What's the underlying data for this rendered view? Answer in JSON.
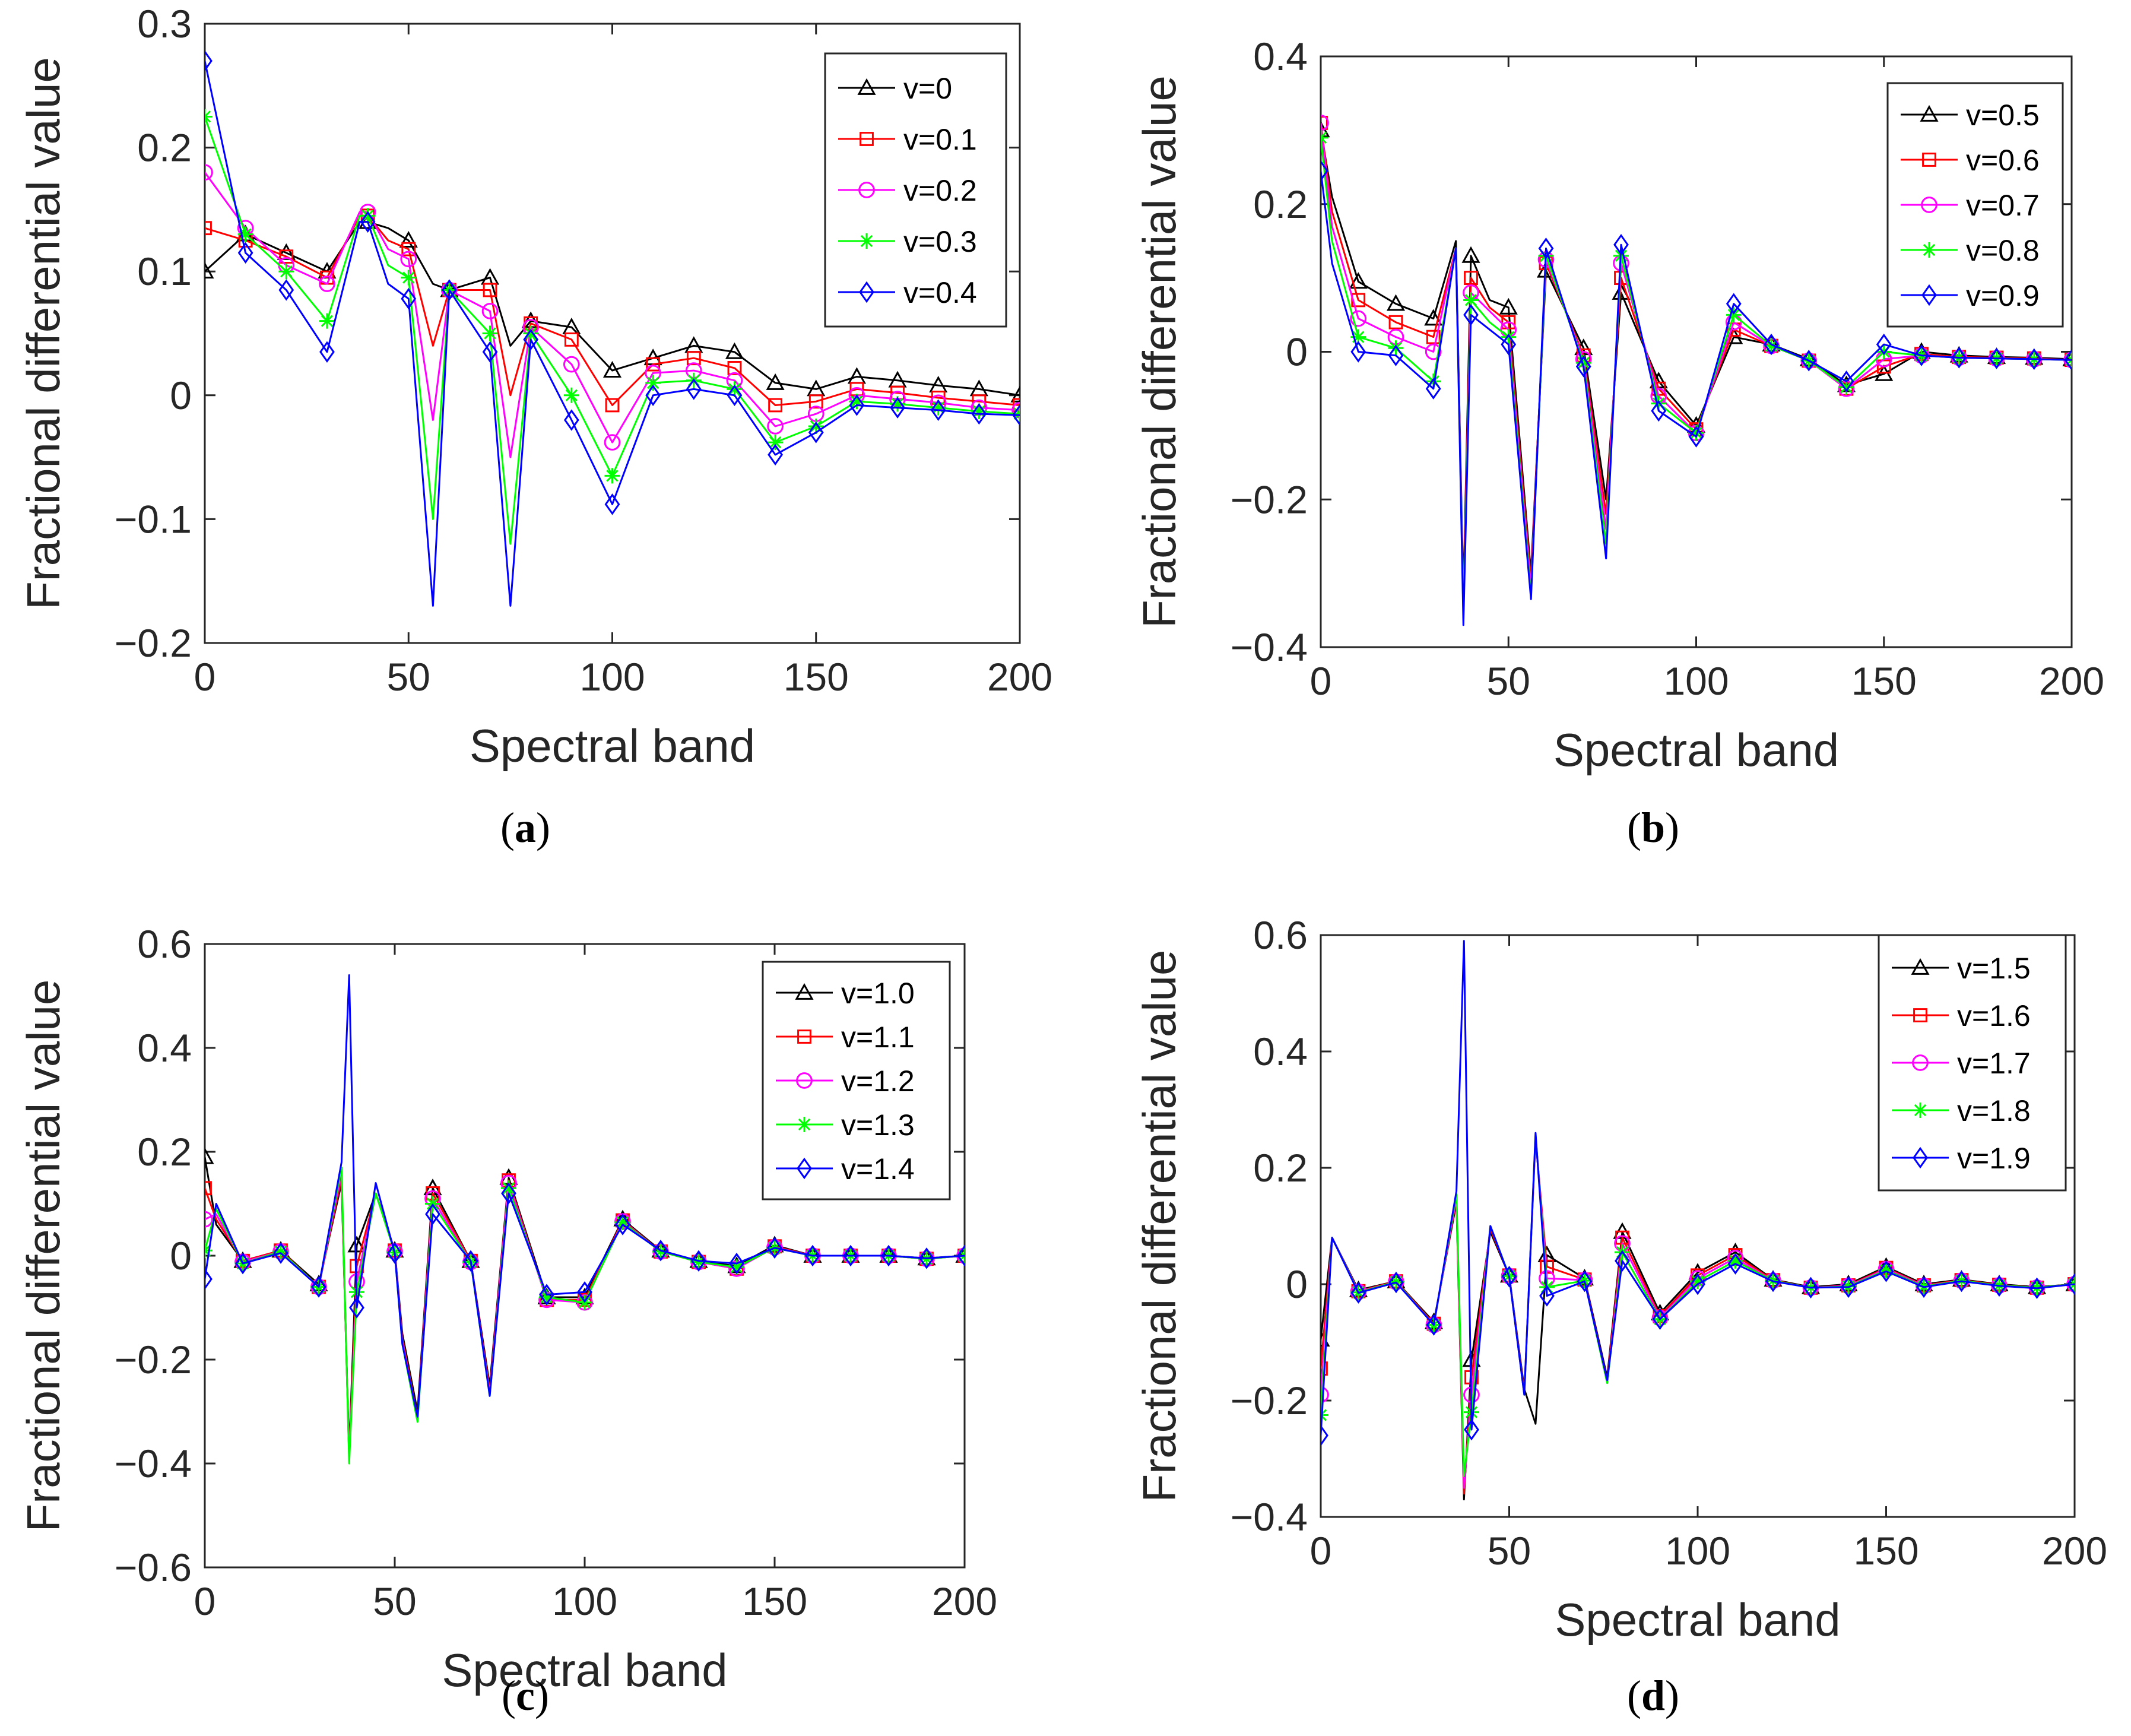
{
  "chart_data": [
    {
      "type": "line",
      "panel_label": "(a)",
      "xlabel": "Spectral band",
      "ylabel": "Fractional differential value",
      "xlim": [
        0,
        200
      ],
      "ylim": [
        -0.2,
        0.3
      ],
      "xticks": [
        0,
        50,
        100,
        150,
        200
      ],
      "yticks": [
        -0.2,
        -0.1,
        0,
        0.1,
        0.2,
        0.3
      ],
      "ytick_labels": [
        "−0.2",
        "−0.1",
        "0",
        "0.1",
        "0.2",
        "0.3"
      ],
      "legend_position": "top-right",
      "x": [
        0,
        10,
        20,
        30,
        38,
        40,
        45,
        50,
        56,
        60,
        70,
        75,
        80,
        90,
        100,
        110,
        120,
        130,
        140,
        150,
        160,
        170,
        180,
        190,
        200
      ],
      "series": [
        {
          "name": "v=0",
          "color": "#000000",
          "marker": "triangle",
          "values": [
            0.1,
            0.13,
            0.115,
            0.1,
            0.14,
            0.14,
            0.135,
            0.125,
            0.09,
            0.085,
            0.095,
            0.04,
            0.06,
            0.055,
            0.02,
            0.03,
            0.04,
            0.035,
            0.01,
            0.005,
            0.015,
            0.012,
            0.008,
            0.005,
            0.0
          ]
        },
        {
          "name": "v=0.1",
          "color": "#ff0000",
          "marker": "square",
          "values": [
            0.135,
            0.125,
            0.112,
            0.095,
            0.145,
            0.145,
            0.125,
            0.118,
            0.04,
            0.085,
            0.085,
            0.0,
            0.058,
            0.045,
            -0.008,
            0.025,
            0.03,
            0.022,
            -0.008,
            -0.005,
            0.005,
            0.002,
            -0.002,
            -0.005,
            -0.008
          ]
        },
        {
          "name": "v=0.2",
          "color": "#ff00ff",
          "marker": "circle",
          "values": [
            0.18,
            0.135,
            0.105,
            0.09,
            0.148,
            0.148,
            0.118,
            0.11,
            -0.02,
            0.085,
            0.068,
            -0.05,
            0.055,
            0.025,
            -0.038,
            0.018,
            0.02,
            0.012,
            -0.025,
            -0.015,
            0.0,
            -0.003,
            -0.006,
            -0.01,
            -0.012
          ]
        },
        {
          "name": "v=0.3",
          "color": "#00ff00",
          "marker": "star",
          "values": [
            0.225,
            0.13,
            0.1,
            0.06,
            0.145,
            0.145,
            0.105,
            0.095,
            -0.1,
            0.085,
            0.05,
            -0.12,
            0.05,
            0.0,
            -0.065,
            0.01,
            0.012,
            0.005,
            -0.038,
            -0.025,
            -0.005,
            -0.007,
            -0.01,
            -0.013,
            -0.015
          ]
        },
        {
          "name": "v=0.4",
          "color": "#0000ff",
          "marker": "diamond",
          "values": [
            0.27,
            0.115,
            0.085,
            0.035,
            0.14,
            0.14,
            0.09,
            0.078,
            -0.17,
            0.085,
            0.035,
            -0.17,
            0.045,
            -0.02,
            -0.088,
            0.0,
            0.005,
            0.0,
            -0.048,
            -0.03,
            -0.008,
            -0.01,
            -0.012,
            -0.015,
            -0.016
          ]
        }
      ]
    },
    {
      "type": "line",
      "panel_label": "(b)",
      "xlabel": "Spectral band",
      "ylabel": "Fractional differential value",
      "xlim": [
        0,
        200
      ],
      "ylim": [
        -0.4,
        0.4
      ],
      "xticks": [
        0,
        50,
        100,
        150,
        200
      ],
      "yticks": [
        -0.4,
        -0.2,
        0,
        0.2,
        0.4
      ],
      "ytick_labels": [
        "−0.4",
        "−0.2",
        "0",
        "0.2",
        "0.4"
      ],
      "legend_position": "top-right",
      "x": [
        0,
        3,
        10,
        20,
        30,
        36,
        38,
        40,
        45,
        50,
        56,
        60,
        70,
        76,
        80,
        90,
        100,
        110,
        120,
        130,
        140,
        150,
        160,
        170,
        180,
        190,
        200
      ],
      "series": [
        {
          "name": "v=0.5",
          "color": "#000000",
          "marker": "triangle",
          "values": [
            0.3,
            0.21,
            0.095,
            0.065,
            0.045,
            0.15,
            -0.33,
            0.13,
            0.07,
            0.06,
            -0.3,
            0.11,
            0.005,
            -0.2,
            0.08,
            -0.04,
            -0.1,
            0.02,
            0.01,
            -0.01,
            -0.045,
            -0.03,
            0.0,
            -0.005,
            -0.007,
            -0.008,
            -0.01
          ]
        },
        {
          "name": "v=0.6",
          "color": "#ff0000",
          "marker": "square",
          "values": [
            0.31,
            0.19,
            0.07,
            0.04,
            0.02,
            0.14,
            -0.34,
            0.1,
            0.06,
            0.04,
            -0.31,
            0.12,
            -0.005,
            -0.22,
            0.1,
            -0.05,
            -0.105,
            0.03,
            0.008,
            -0.012,
            -0.05,
            -0.02,
            -0.003,
            -0.007,
            -0.008,
            -0.009,
            -0.011
          ]
        },
        {
          "name": "v=0.7",
          "color": "#ff00ff",
          "marker": "circle",
          "values": [
            0.31,
            0.17,
            0.045,
            0.02,
            0.0,
            0.14,
            -0.35,
            0.08,
            0.055,
            0.03,
            -0.32,
            0.125,
            -0.01,
            -0.24,
            0.12,
            -0.06,
            -0.11,
            0.04,
            0.008,
            -0.012,
            -0.05,
            -0.01,
            -0.005,
            -0.008,
            -0.009,
            -0.01,
            -0.011
          ]
        },
        {
          "name": "v=0.8",
          "color": "#00ff00",
          "marker": "star",
          "values": [
            0.29,
            0.15,
            0.02,
            0.005,
            -0.04,
            0.14,
            -0.36,
            0.07,
            0.04,
            0.02,
            -0.33,
            0.13,
            -0.015,
            -0.26,
            0.13,
            -0.07,
            -0.11,
            0.05,
            0.008,
            -0.012,
            -0.048,
            0.0,
            -0.005,
            -0.008,
            -0.009,
            -0.01,
            -0.011
          ]
        },
        {
          "name": "v=0.9",
          "color": "#0000ff",
          "marker": "diamond",
          "values": [
            0.245,
            0.12,
            0.0,
            -0.005,
            -0.05,
            0.14,
            -0.37,
            0.05,
            0.03,
            0.01,
            -0.335,
            0.14,
            -0.02,
            -0.28,
            0.145,
            -0.08,
            -0.115,
            0.065,
            0.01,
            -0.012,
            -0.04,
            0.01,
            -0.005,
            -0.008,
            -0.009,
            -0.01,
            -0.011
          ]
        }
      ]
    },
    {
      "type": "line",
      "panel_label": "(c)",
      "xlabel": "Spectral band",
      "ylabel": "Fractional differential value",
      "xlim": [
        0,
        200
      ],
      "ylim": [
        -0.6,
        0.6
      ],
      "xticks": [
        0,
        50,
        100,
        150,
        200
      ],
      "yticks": [
        -0.6,
        -0.4,
        -0.2,
        0,
        0.2,
        0.4,
        0.6
      ],
      "ytick_labels": [
        "−0.6",
        "−0.4",
        "−0.2",
        "0",
        "0.2",
        "0.4",
        "0.6"
      ],
      "legend_position": "top-right",
      "x": [
        0,
        3,
        10,
        20,
        30,
        36,
        38,
        40,
        45,
        50,
        52,
        56,
        60,
        70,
        75,
        80,
        90,
        100,
        110,
        120,
        130,
        140,
        150,
        160,
        170,
        180,
        190,
        200
      ],
      "series": [
        {
          "name": "v=1.0",
          "color": "#000000",
          "marker": "triangle",
          "values": [
            0.19,
            0.06,
            -0.01,
            0.01,
            -0.055,
            0.14,
            -0.38,
            0.02,
            0.12,
            0.01,
            -0.15,
            -0.3,
            0.13,
            -0.01,
            -0.25,
            0.15,
            -0.08,
            -0.08,
            0.07,
            0.01,
            -0.01,
            -0.02,
            0.02,
            0.0,
            0.0,
            0.0,
            -0.005,
            0.0
          ]
        },
        {
          "name": "v=1.1",
          "color": "#ff0000",
          "marker": "square",
          "values": [
            0.13,
            0.07,
            -0.01,
            0.01,
            -0.06,
            0.15,
            -0.39,
            -0.02,
            0.12,
            0.01,
            -0.16,
            -0.31,
            0.12,
            -0.01,
            -0.26,
            0.145,
            -0.085,
            -0.085,
            0.068,
            0.008,
            -0.012,
            -0.025,
            0.018,
            0.0,
            0.0,
            0.0,
            -0.006,
            0.0
          ]
        },
        {
          "name": "v=1.2",
          "color": "#ff00ff",
          "marker": "circle",
          "values": [
            0.07,
            0.08,
            -0.012,
            0.008,
            -0.06,
            0.16,
            -0.395,
            -0.05,
            0.12,
            0.008,
            -0.165,
            -0.315,
            0.11,
            -0.012,
            -0.265,
            0.14,
            -0.085,
            -0.09,
            0.066,
            0.008,
            -0.012,
            -0.025,
            0.016,
            0.0,
            0.0,
            0.0,
            -0.006,
            0.0
          ]
        },
        {
          "name": "v=1.3",
          "color": "#00ff00",
          "marker": "star",
          "values": [
            0.01,
            0.09,
            -0.015,
            0.008,
            -0.06,
            0.17,
            -0.4,
            -0.07,
            0.12,
            0.006,
            -0.17,
            -0.32,
            0.1,
            -0.012,
            -0.27,
            0.13,
            -0.08,
            -0.09,
            0.064,
            0.008,
            -0.012,
            -0.022,
            0.015,
            0.0,
            0.0,
            0.0,
            -0.006,
            0.0
          ]
        },
        {
          "name": "v=1.4",
          "color": "#0000ff",
          "marker": "diamond",
          "values": [
            -0.045,
            0.1,
            -0.015,
            0.005,
            -0.06,
            0.18,
            0.54,
            -0.1,
            0.14,
            0.005,
            -0.17,
            -0.31,
            0.08,
            -0.01,
            -0.27,
            0.12,
            -0.075,
            -0.07,
            0.06,
            0.01,
            -0.01,
            -0.015,
            0.015,
            0.0,
            0.0,
            0.0,
            -0.005,
            0.0
          ]
        }
      ]
    },
    {
      "type": "line",
      "panel_label": "(d)",
      "xlabel": "Spectral band",
      "ylabel": "Fractional differential value",
      "xlim": [
        0,
        200
      ],
      "ylim": [
        -0.4,
        0.6
      ],
      "xticks": [
        0,
        50,
        100,
        150,
        200
      ],
      "yticks": [
        -0.4,
        -0.2,
        0,
        0.2,
        0.4,
        0.6
      ],
      "ytick_labels": [
        "−0.4",
        "−0.2",
        "0",
        "0.2",
        "0.4",
        "0.6"
      ],
      "legend_position": "top-right",
      "x": [
        0,
        3,
        10,
        20,
        30,
        36,
        38,
        40,
        45,
        50,
        54,
        57,
        60,
        70,
        76,
        80,
        90,
        100,
        110,
        120,
        130,
        140,
        150,
        160,
        170,
        180,
        190,
        200
      ],
      "series": [
        {
          "name": "v=1.5",
          "color": "#000000",
          "marker": "triangle",
          "values": [
            -0.095,
            0.08,
            -0.01,
            0.005,
            -0.065,
            0.14,
            -0.37,
            -0.13,
            0.09,
            0.015,
            -0.18,
            -0.24,
            0.05,
            0.01,
            -0.16,
            0.09,
            -0.05,
            0.02,
            0.055,
            0.008,
            -0.005,
            0.0,
            0.03,
            0.0,
            0.008,
            0.0,
            -0.005,
            0.0
          ]
        },
        {
          "name": "v=1.6",
          "color": "#ff0000",
          "marker": "square",
          "values": [
            -0.145,
            0.08,
            -0.012,
            0.005,
            -0.068,
            0.145,
            -0.36,
            -0.16,
            0.095,
            0.015,
            -0.185,
            0.25,
            0.03,
            0.008,
            -0.165,
            0.08,
            -0.055,
            0.015,
            0.05,
            0.007,
            -0.006,
            -0.002,
            0.028,
            -0.002,
            0.007,
            -0.001,
            -0.006,
            0.0
          ]
        },
        {
          "name": "v=1.7",
          "color": "#ff00ff",
          "marker": "circle",
          "values": [
            -0.19,
            0.08,
            -0.013,
            0.004,
            -0.07,
            0.15,
            -0.35,
            -0.19,
            0.1,
            0.014,
            -0.19,
            0.255,
            0.01,
            0.007,
            -0.17,
            0.07,
            -0.058,
            0.01,
            0.045,
            0.006,
            -0.006,
            -0.003,
            0.026,
            -0.003,
            0.006,
            -0.002,
            -0.006,
            0.0
          ]
        },
        {
          "name": "v=1.8",
          "color": "#00ff00",
          "marker": "star",
          "values": [
            -0.225,
            0.08,
            -0.014,
            0.004,
            -0.07,
            0.155,
            -0.33,
            -0.22,
            0.1,
            0.014,
            -0.19,
            0.258,
            -0.005,
            0.006,
            -0.17,
            0.055,
            -0.06,
            0.005,
            0.04,
            0.006,
            -0.006,
            -0.004,
            0.024,
            -0.004,
            0.006,
            -0.002,
            -0.006,
            0.0
          ]
        },
        {
          "name": "v=1.9",
          "color": "#0000ff",
          "marker": "diamond",
          "values": [
            -0.26,
            0.08,
            -0.015,
            0.003,
            -0.07,
            0.16,
            0.59,
            -0.25,
            0.1,
            0.013,
            -0.19,
            0.26,
            -0.02,
            0.005,
            -0.165,
            0.04,
            -0.06,
            0.0,
            0.035,
            0.005,
            -0.006,
            -0.005,
            0.022,
            -0.005,
            0.005,
            -0.003,
            -0.007,
            0.0
          ]
        }
      ]
    }
  ]
}
